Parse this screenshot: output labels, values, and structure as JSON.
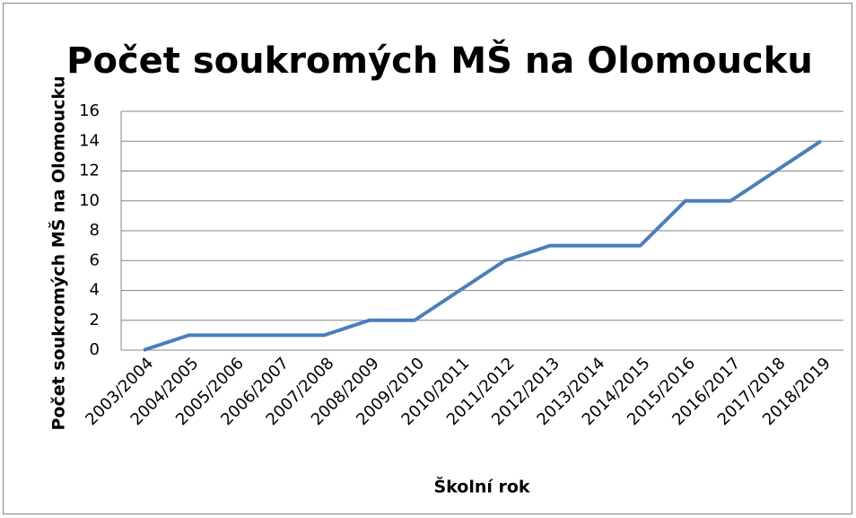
{
  "chart_data": {
    "type": "line",
    "title": "Počet soukromých MŠ na Olomoucku",
    "x_label": "Školní rok",
    "y_label": "Počet soukromých MŠ na Olomoucku",
    "categories": [
      "2003/2004",
      "2004/2005",
      "2005/2006",
      "2006/2007",
      "2007/2008",
      "2008/2009",
      "2009/2010",
      "2010/2011",
      "2011/2012",
      "2012/2013",
      "2013/2014",
      "2014/2015",
      "2015/2016",
      "2016/2017",
      "2017/2018",
      "2018/2019"
    ],
    "values": [
      0,
      1,
      1,
      1,
      1,
      2,
      2,
      4,
      6,
      7,
      7,
      7,
      10,
      10,
      12,
      14
    ],
    "color": "#4a7ebb",
    "ylim": [
      0,
      16
    ],
    "yticks": [
      0,
      2,
      4,
      6,
      8,
      10,
      12,
      14,
      16
    ],
    "grid": true
  }
}
